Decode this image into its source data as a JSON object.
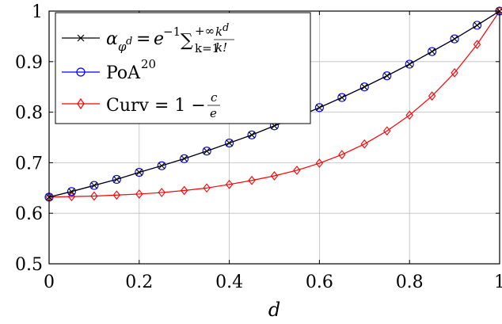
{
  "chart_data": {
    "type": "line",
    "xlabel": "d",
    "ylabel": "",
    "xlim": [
      0,
      1
    ],
    "ylim": [
      0.5,
      1
    ],
    "grid": true,
    "legend_position": "top-left",
    "x_ticks": [
      "0",
      "0.2",
      "0.4",
      "0.6",
      "0.8",
      "1"
    ],
    "y_ticks": [
      "0.5",
      "0.6",
      "0.7",
      "0.8",
      "0.9",
      "1"
    ],
    "x": [
      0,
      0.05,
      0.1,
      0.15,
      0.2,
      0.25,
      0.3,
      0.35,
      0.4,
      0.45,
      0.5,
      0.55,
      0.6,
      0.65,
      0.7,
      0.75,
      0.8,
      0.85,
      0.9,
      0.95,
      1
    ],
    "series": [
      {
        "name": "α_{φ^d} = e^{-1} Σ_{k=1}^{+∞} k^d/k!",
        "color": "#000000",
        "marker": "x-icon",
        "values": [
          0.632,
          0.643,
          0.655,
          0.667,
          0.681,
          0.694,
          0.708,
          0.723,
          0.739,
          0.755,
          0.773,
          0.79,
          0.809,
          0.829,
          0.85,
          0.872,
          0.895,
          0.92,
          0.945,
          0.972,
          1.0
        ]
      },
      {
        "name": "PoA^20",
        "color": "#0000ff",
        "marker": "circle-icon",
        "values": [
          0.632,
          0.643,
          0.655,
          0.667,
          0.681,
          0.694,
          0.708,
          0.723,
          0.739,
          0.755,
          0.773,
          0.79,
          0.809,
          0.829,
          0.85,
          0.872,
          0.895,
          0.92,
          0.945,
          0.972,
          1.0
        ]
      },
      {
        "name": "Curv = 1 − c/e",
        "color": "#ff0000",
        "marker": "diamond-icon",
        "values": [
          0.632,
          0.633,
          0.634,
          0.636,
          0.638,
          0.641,
          0.645,
          0.65,
          0.657,
          0.665,
          0.674,
          0.685,
          0.699,
          0.716,
          0.737,
          0.763,
          0.794,
          0.832,
          0.878,
          0.934,
          1.0
        ]
      }
    ]
  }
}
